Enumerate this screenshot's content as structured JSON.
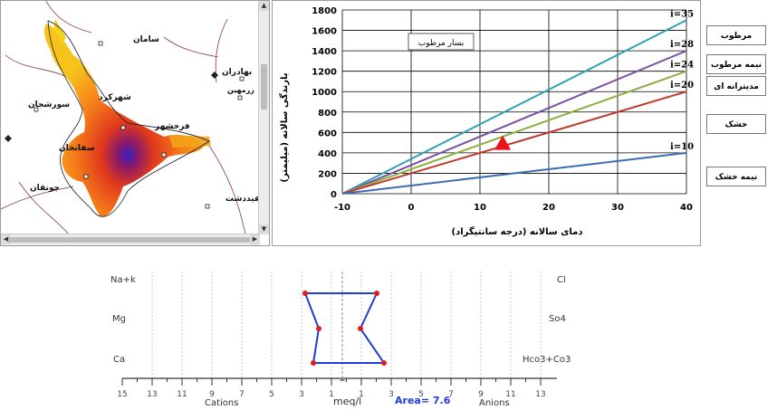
{
  "map": {
    "cities": [
      {
        "id": "saman",
        "name": "سامان"
      },
      {
        "id": "bahadoran",
        "name": "بهادران"
      },
      {
        "id": "zarmeh",
        "name": "زرمهین"
      },
      {
        "id": "shahrekord",
        "name": "شهرکرد"
      },
      {
        "id": "soreshjan",
        "name": "سورشجان"
      },
      {
        "id": "farrokhshahr",
        "name": "فرخشهر"
      },
      {
        "id": "safaneh",
        "name": "سفانخان"
      },
      {
        "id": "junaghan",
        "name": "جونقان"
      },
      {
        "id": "sefiddasht",
        "name": "سفیددشت"
      }
    ]
  },
  "climate_chart": {
    "legend_box": "بسار مرطوب",
    "ylabel": "بارندگی سالانه (میلیمتر)",
    "xlabel": "دمای سالانه (درجه سانتیگراد)",
    "side_labels": [
      "مرطوب",
      "نیمه مرطوب",
      "مدیترانه ای",
      "خشک",
      "نیمه خشک"
    ],
    "colors": {
      "i35": "#31a2b5",
      "i28": "#7b4fa0",
      "i24": "#8bb03f",
      "i20": "#c0392b",
      "i10": "#3a6db2",
      "marker": "#e8141a"
    }
  },
  "schoeller": {
    "cation_labels": [
      "Na+k",
      "Mg",
      "Ca"
    ],
    "anion_labels": [
      "Cl",
      "So4",
      "Hco3+Co3"
    ],
    "axis_ticks": [
      "15",
      "13",
      "11",
      "9",
      "7",
      "5",
      "3",
      "1",
      "1",
      "3",
      "5",
      "7",
      "9",
      "11",
      "13"
    ],
    "cations_label": "Cations",
    "anions_label": "Anions",
    "unit_label": "meq/l",
    "area_label": "Area= 7.6",
    "line_color": "#1f3cd8",
    "point_color": "#e21b1b"
  },
  "chart_data": {
    "type": "line",
    "x": [
      -10,
      40
    ],
    "xlim": [
      -10,
      40
    ],
    "ylim": [
      0,
      1800
    ],
    "xticks": [
      "-10",
      "0",
      "10",
      "20",
      "30",
      "40"
    ],
    "yticks": [
      "0",
      "200",
      "400",
      "600",
      "800",
      "1000",
      "1200",
      "1400",
      "1600",
      "1800"
    ],
    "series": [
      {
        "name": "i=35",
        "values": [
          0,
          1700
        ]
      },
      {
        "name": "i=28",
        "values": [
          0,
          1400
        ]
      },
      {
        "name": "i=24",
        "values": [
          0,
          1200
        ]
      },
      {
        "name": "i=20",
        "values": [
          0,
          1000
        ]
      },
      {
        "name": "i=10",
        "values": [
          0,
          400
        ]
      }
    ],
    "marker_point": {
      "x": 13.3,
      "y": 500
    },
    "grid": true
  }
}
